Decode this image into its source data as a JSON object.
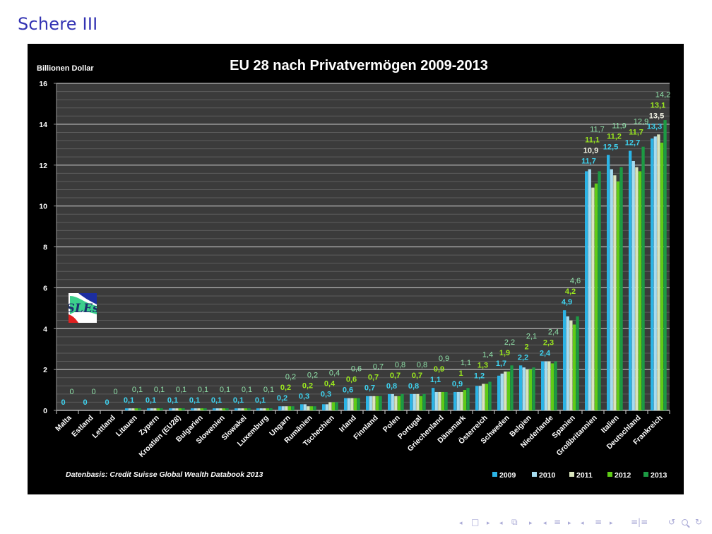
{
  "slide": {
    "title": "Schere III"
  },
  "chart_data": {
    "type": "bar",
    "title": "EU 28 nach Privatvermögen 2009-2013",
    "ylabel": "Billionen Dollar",
    "xlabel": "",
    "ylim": [
      0,
      16
    ],
    "yticks": [
      0,
      2,
      4,
      6,
      8,
      10,
      12,
      14,
      16
    ],
    "ytick_labels": [
      "0",
      "2",
      "4",
      "6",
      "8",
      "10",
      "12",
      "14",
      "16"
    ],
    "grid": true,
    "legend_position": "bottom-right",
    "source_note": "Datenbasis: Credit Suisse Global Wealth Databook 2013",
    "categories": [
      "Malta",
      "Estland",
      "Lettland",
      "Litauen",
      "Zypern",
      "Kroatien (EU28)",
      "Bulgarien",
      "Slowenien",
      "Slowakei",
      "Luxemburg",
      "Ungarn",
      "Rumänien",
      "Tschechien",
      "Irland",
      "Finnland",
      "Polen",
      "Portugal",
      "Griechenland",
      "Dänemark",
      "Österreich",
      "Schweden",
      "Belgien",
      "Niederlande",
      "Spanien",
      "Großbritannien",
      "Italien",
      "Deutschland",
      "Frankreich"
    ],
    "series": [
      {
        "name": "2009",
        "color": "#2bb4e6",
        "label_color": "#3fd3f0",
        "values": [
          0,
          0,
          0,
          0.1,
          0.1,
          0.1,
          0.1,
          0.1,
          0.1,
          0.1,
          0.2,
          0.3,
          0.3,
          0.6,
          0.7,
          0.8,
          0.8,
          1.1,
          0.9,
          1.2,
          1.7,
          2.2,
          2.4,
          4.9,
          11.7,
          12.5,
          12.7,
          13.3
        ]
      },
      {
        "name": "2010",
        "color": "#a6dcf0",
        "label_color": "#a6dcf0",
        "values": [
          0,
          0,
          0,
          0.1,
          0.1,
          0.1,
          0.1,
          0.1,
          0.1,
          0.1,
          0.2,
          0.3,
          0.3,
          0.6,
          0.7,
          0.8,
          0.8,
          0.9,
          0.9,
          1.2,
          1.8,
          2.1,
          2.4,
          4.6,
          11.8,
          11.8,
          12.2,
          13.4
        ]
      },
      {
        "name": "2011",
        "color": "#d9e4bd",
        "label_color": "#f4f4e6",
        "values": [
          0,
          0,
          0,
          0.1,
          0.1,
          0.1,
          0.1,
          0.1,
          0.1,
          0.1,
          0.2,
          0.2,
          0.4,
          0.6,
          0.7,
          0.7,
          0.8,
          0.9,
          0.9,
          1.3,
          1.9,
          2.0,
          2.4,
          4.4,
          10.9,
          11.5,
          11.9,
          13.5
        ]
      },
      {
        "name": "2012",
        "color": "#5fcc16",
        "label_color": "#9be81e",
        "values": [
          0,
          0,
          0,
          0.1,
          0.1,
          0.1,
          0.1,
          0.1,
          0.1,
          0.1,
          0.2,
          0.2,
          0.4,
          0.6,
          0.7,
          0.7,
          0.7,
          0.9,
          1.0,
          1.3,
          1.9,
          2.0,
          2.3,
          4.2,
          11.1,
          11.2,
          11.7,
          13.1
        ]
      },
      {
        "name": "2013",
        "color": "#1c9a43",
        "label_color": "#8fe0a8",
        "values": [
          0,
          0,
          0,
          0.1,
          0.1,
          0.1,
          0.1,
          0.1,
          0.1,
          0.1,
          0.2,
          0.2,
          0.4,
          0.6,
          0.7,
          0.8,
          0.8,
          0.9,
          1.1,
          1.4,
          2.2,
          2.1,
          2.4,
          4.6,
          11.7,
          11.9,
          12.9,
          14.2
        ]
      }
    ],
    "data_labels": [
      [
        {
          "series": "2009",
          "text": "0"
        },
        {
          "series": "2013",
          "text": "0"
        }
      ],
      [
        {
          "series": "2009",
          "text": "0"
        },
        {
          "series": "2013",
          "text": "0"
        }
      ],
      [
        {
          "series": "2009",
          "text": "0"
        },
        {
          "series": "2013",
          "text": "0"
        }
      ],
      [
        {
          "series": "2009",
          "text": "0,1"
        },
        {
          "series": "2013",
          "text": "0,1"
        }
      ],
      [
        {
          "series": "2009",
          "text": "0,1"
        },
        {
          "series": "2013",
          "text": "0,1"
        }
      ],
      [
        {
          "series": "2009",
          "text": "0,1"
        },
        {
          "series": "2013",
          "text": "0,1"
        }
      ],
      [
        {
          "series": "2009",
          "text": "0,1"
        },
        {
          "series": "2013",
          "text": "0,1"
        }
      ],
      [
        {
          "series": "2009",
          "text": "0,1"
        },
        {
          "series": "2013",
          "text": "0,1"
        }
      ],
      [
        {
          "series": "2009",
          "text": "0,1"
        },
        {
          "series": "2013",
          "text": "0,1"
        }
      ],
      [
        {
          "series": "2009",
          "text": "0,1"
        },
        {
          "series": "2013",
          "text": "0,1"
        }
      ],
      [
        {
          "series": "2009",
          "text": "0,2"
        },
        {
          "series": "2012",
          "text": "0,2"
        },
        {
          "series": "2013",
          "text": "0,2"
        }
      ],
      [
        {
          "series": "2009",
          "text": "0,3"
        },
        {
          "series": "2012",
          "text": "0,2"
        },
        {
          "series": "2013",
          "text": "0,2"
        }
      ],
      [
        {
          "series": "2009",
          "text": "0,3"
        },
        {
          "series": "2012",
          "text": "0,4"
        },
        {
          "series": "2013",
          "text": "0,4"
        }
      ],
      [
        {
          "series": "2009",
          "text": "0,6"
        },
        {
          "series": "2012",
          "text": "0,6"
        },
        {
          "series": "2013",
          "text": "0,6"
        }
      ],
      [
        {
          "series": "2009",
          "text": "0,7"
        },
        {
          "series": "2012",
          "text": "0,7"
        },
        {
          "series": "2013",
          "text": "0,7"
        }
      ],
      [
        {
          "series": "2009",
          "text": "0,8"
        },
        {
          "series": "2012",
          "text": "0,7"
        },
        {
          "series": "2013",
          "text": "0,8"
        }
      ],
      [
        {
          "series": "2009",
          "text": "0,8"
        },
        {
          "series": "2012",
          "text": "0,7"
        },
        {
          "series": "2013",
          "text": "0,8"
        }
      ],
      [
        {
          "series": "2009",
          "text": "1,1"
        },
        {
          "series": "2012",
          "text": "0,9"
        },
        {
          "series": "2013",
          "text": "0,9"
        }
      ],
      [
        {
          "series": "2009",
          "text": "0,9"
        },
        {
          "series": "2012",
          "text": "1"
        },
        {
          "series": "2013",
          "text": "1,1"
        }
      ],
      [
        {
          "series": "2009",
          "text": "1,2"
        },
        {
          "series": "2012",
          "text": "1,3"
        },
        {
          "series": "2013",
          "text": "1,4"
        }
      ],
      [
        {
          "series": "2009",
          "text": "1,7"
        },
        {
          "series": "2012",
          "text": "1,9"
        },
        {
          "series": "2013",
          "text": "2,2"
        }
      ],
      [
        {
          "series": "2009",
          "text": "2,2"
        },
        {
          "series": "2012",
          "text": "2"
        },
        {
          "series": "2013",
          "text": "2,1"
        }
      ],
      [
        {
          "series": "2009",
          "text": "2,4"
        },
        {
          "series": "2012",
          "text": "2,3"
        },
        {
          "series": "2013",
          "text": "2,4"
        }
      ],
      [
        {
          "series": "2009",
          "text": "4,9"
        },
        {
          "series": "2012",
          "text": "4,2"
        },
        {
          "series": "2013",
          "text": "4,6"
        }
      ],
      [
        {
          "series": "2009",
          "text": "11,7"
        },
        {
          "series": "2011",
          "text": "10,9"
        },
        {
          "series": "2012",
          "text": "11,1"
        },
        {
          "series": "2013",
          "text": "11,7"
        }
      ],
      [
        {
          "series": "2009",
          "text": "12,5"
        },
        {
          "series": "2012",
          "text": "11,2"
        },
        {
          "series": "2013",
          "text": "11,9"
        }
      ],
      [
        {
          "series": "2009",
          "text": "12,7"
        },
        {
          "series": "2012",
          "text": "11,7"
        },
        {
          "series": "2013",
          "text": "12,9"
        }
      ],
      [
        {
          "series": "2009",
          "text": "13,3"
        },
        {
          "series": "2011",
          "text": "13,5"
        },
        {
          "series": "2012",
          "text": "13,1"
        },
        {
          "series": "2013",
          "text": "14,2"
        }
      ]
    ]
  },
  "logo": {
    "text": "SLEs"
  }
}
